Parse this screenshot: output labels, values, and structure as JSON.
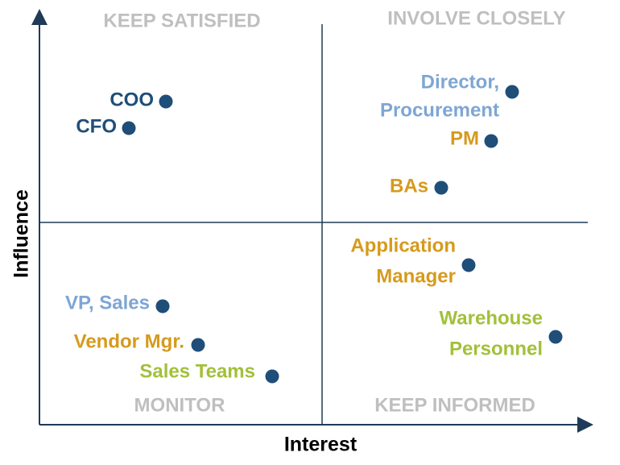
{
  "quadrants": {
    "top_left": "KEEP SATISFIED",
    "top_right": "INVOLVE CLOSELY",
    "bottom_left": "MONITOR",
    "bottom_right": "KEEP INFORMED"
  },
  "axes": {
    "x": "Interest",
    "y": "Influence"
  },
  "stakeholders": [
    {
      "lines": [
        "COO"
      ]
    },
    {
      "lines": [
        "CFO"
      ]
    },
    {
      "lines": [
        "Director,",
        "Procurement"
      ]
    },
    {
      "lines": [
        "PM"
      ]
    },
    {
      "lines": [
        "BAs"
      ]
    },
    {
      "lines": [
        "Application",
        "Manager"
      ]
    },
    {
      "lines": [
        "VP, Sales"
      ]
    },
    {
      "lines": [
        "Vendor Mgr."
      ]
    },
    {
      "lines": [
        "Sales Teams"
      ]
    },
    {
      "lines": [
        "Warehouse",
        "Personnel"
      ]
    }
  ]
}
